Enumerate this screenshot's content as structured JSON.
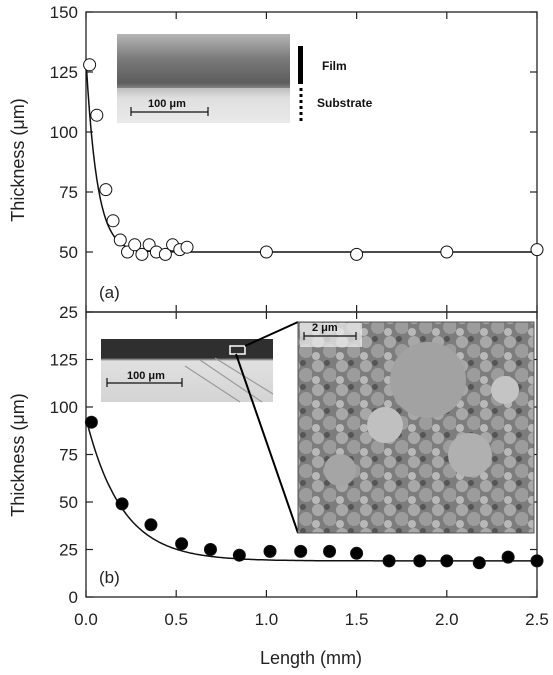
{
  "chart_data": [
    {
      "panel": "(a)",
      "type": "scatter",
      "xlabel": "Length (mm)",
      "ylabel": "Thickness (μm)",
      "xlim": [
        0,
        2.5
      ],
      "ylim": [
        25,
        150
      ],
      "yticks": [
        25,
        50,
        75,
        100,
        125,
        150
      ],
      "marker": "open-circle",
      "series": [
        {
          "x": [
            0.02,
            0.06,
            0.11,
            0.15,
            0.19,
            0.23,
            0.27,
            0.31,
            0.35,
            0.39,
            0.44,
            0.48,
            0.52,
            0.56,
            1.0,
            1.5,
            2.0,
            2.5
          ],
          "y": [
            128,
            107,
            76,
            63,
            55,
            50,
            53,
            49,
            53,
            50,
            49,
            53,
            51,
            52,
            50,
            49,
            50,
            51
          ]
        }
      ],
      "fit": {
        "form": "exponential-decay",
        "asymptote": 50,
        "amplitude": 80,
        "decay_mm": 0.062
      },
      "inset": {
        "scale_label": "100 μm",
        "labels": [
          "Film",
          "Substrate"
        ]
      }
    },
    {
      "panel": "(b)",
      "type": "scatter",
      "xlabel": "Length (mm)",
      "ylabel": "Thickness (μm)",
      "xlim": [
        0,
        2.5
      ],
      "ylim": [
        0,
        150
      ],
      "yticks": [
        0,
        25,
        50,
        75,
        100,
        125
      ],
      "xticks": [
        0.0,
        0.5,
        1.0,
        1.5,
        2.0,
        2.5
      ],
      "marker": "filled-circle",
      "series": [
        {
          "x": [
            0.03,
            0.2,
            0.36,
            0.53,
            0.69,
            0.85,
            1.02,
            1.19,
            1.35,
            1.5,
            1.68,
            1.85,
            2.0,
            2.18,
            2.34,
            2.5
          ],
          "y": [
            92,
            49,
            38,
            28,
            25,
            22,
            24,
            24,
            24,
            23,
            19,
            19,
            19,
            18,
            21,
            19
          ]
        }
      ],
      "fit": {
        "form": "exponential-decay",
        "asymptote": 19,
        "amplitude": 75,
        "decay_mm": 0.2
      },
      "inset_left": {
        "scale_label": "100 μm"
      },
      "inset_right": {
        "scale_label": "2 μm"
      }
    }
  ],
  "x_tick_labels": [
    "0.0",
    "0.5",
    "1.0",
    "1.5",
    "2.0",
    "2.5"
  ],
  "panel_a_tick_labels": [
    "150",
    "125",
    "100",
    "75",
    "50",
    "25"
  ],
  "panel_b_tick_labels": [
    "125",
    "100",
    "75",
    "50",
    "25",
    "0"
  ]
}
